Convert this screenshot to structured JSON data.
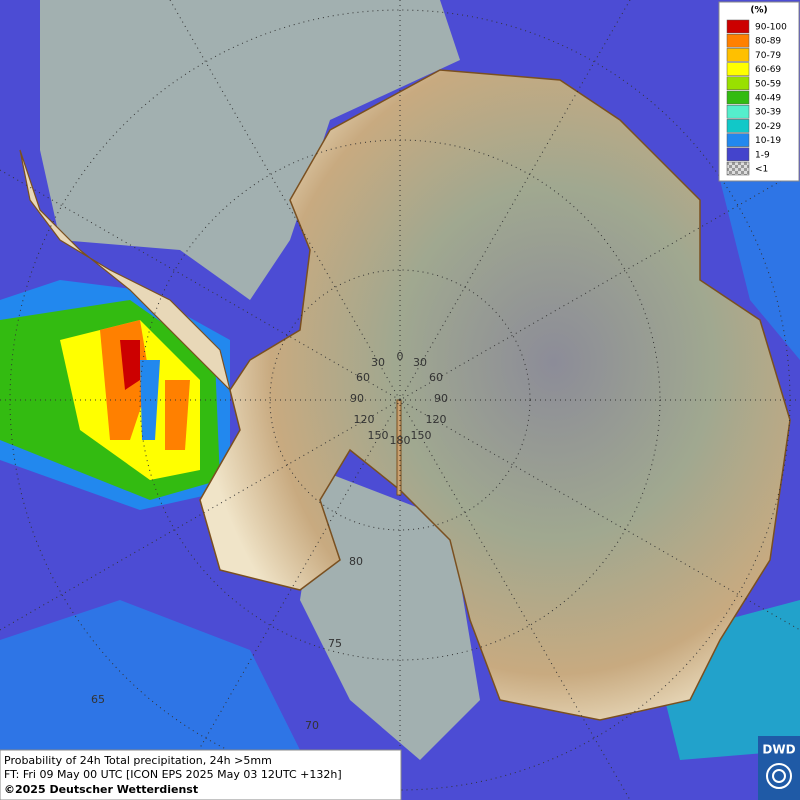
{
  "legend": {
    "title": "(%)",
    "items": [
      {
        "label": "90-100",
        "color": "#cc0000"
      },
      {
        "label": "80-89",
        "color": "#ff8000"
      },
      {
        "label": "70-79",
        "color": "#ffc000"
      },
      {
        "label": "60-69",
        "color": "#ffff00"
      },
      {
        "label": "50-59",
        "color": "#99e000"
      },
      {
        "label": "40-49",
        "color": "#33bb11"
      },
      {
        "label": "30-39",
        "color": "#55eecc"
      },
      {
        "label": "20-29",
        "color": "#11c8c8"
      },
      {
        "label": "10-19",
        "color": "#2288ee"
      },
      {
        "label": "1-9",
        "color": "#4444cc"
      },
      {
        "label": "<1",
        "color": "#bbbbbb"
      }
    ]
  },
  "grid_labels": [
    "0",
    "30",
    "30",
    "60",
    "60",
    "90",
    "90",
    "120",
    "120",
    "150",
    "150",
    "180",
    "80",
    "75",
    "65",
    "70"
  ],
  "footer": {
    "lines": [
      "Probability of 24h Total precipitation, 24h >5mm",
      "FT: Fri 09 May 00 UTC [ICON EPS 2025 May 03 12UTC +132h]",
      "©2025 Deutscher Wetterdienst"
    ]
  },
  "logo": {
    "text": "DWD"
  }
}
